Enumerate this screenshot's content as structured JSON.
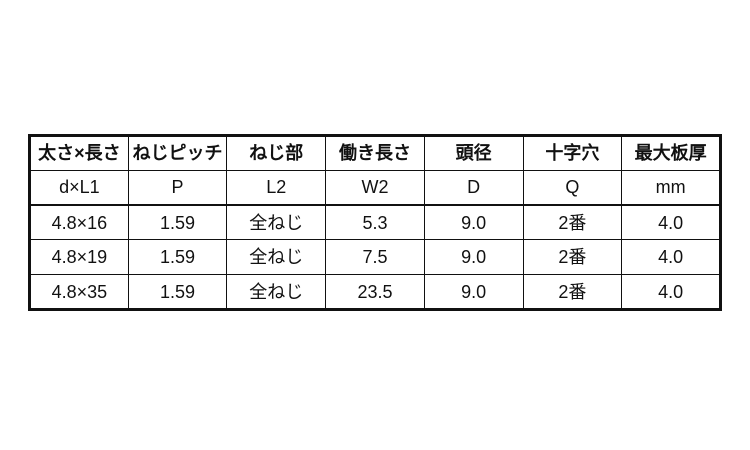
{
  "colors": {
    "background": "#ffffff",
    "border": "#111111",
    "text": "#111111"
  },
  "chart_data": {
    "type": "table",
    "headers": [
      "太さ×長さ",
      "ねじピッチ",
      "ねじ部",
      "働き長さ",
      "頭径",
      "十字穴",
      "最大板厚"
    ],
    "symbols": [
      "d×L1",
      "P",
      "L2",
      "W2",
      "D",
      "Q",
      "mm"
    ],
    "rows": [
      [
        "4.8×16",
        "1.59",
        "全ねじ",
        "5.3",
        "9.0",
        "2番",
        "4.0"
      ],
      [
        "4.8×19",
        "1.59",
        "全ねじ",
        "7.5",
        "9.0",
        "2番",
        "4.0"
      ],
      [
        "4.8×35",
        "1.59",
        "全ねじ",
        "23.5",
        "9.0",
        "2番",
        "4.0"
      ]
    ],
    "layout": {
      "columns": 7,
      "header_rows": 2,
      "data_rows": 3,
      "grid": true,
      "outer_border": "thick"
    }
  }
}
